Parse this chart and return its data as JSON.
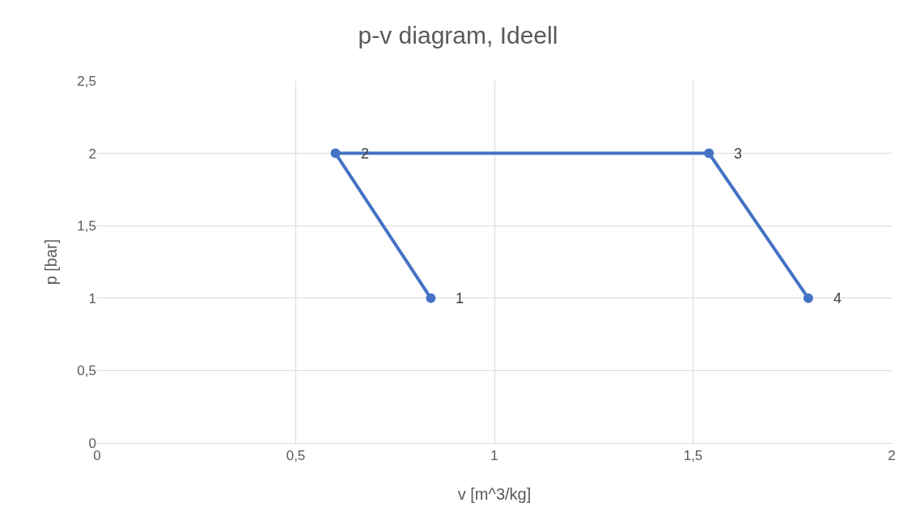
{
  "chart_data": {
    "type": "line",
    "title": "p-v diagram, Ideell",
    "xlabel": "v [m^3/kg]",
    "ylabel": "p [bar]",
    "x": [
      0.84,
      0.6,
      1.54,
      1.79
    ],
    "series": [
      {
        "color": "#4472c4",
        "values": [
          1,
          2,
          2,
          1
        ]
      }
    ],
    "xlim": [
      0,
      2
    ],
    "xticks": [
      0,
      {
        "value": 0.5,
        "label": "0,5"
      },
      1,
      {
        "value": 1.5,
        "label": "1,5"
      },
      2
    ],
    "ylim": [
      0,
      2.5
    ],
    "yticks": [
      0,
      {
        "value": 0.5,
        "label": "0,5"
      },
      1,
      {
        "value": 1.5,
        "label": "1,5"
      },
      2,
      {
        "value": 2.5,
        "label": "2,5"
      }
    ],
    "grid": true,
    "marker": "circle",
    "line_style": "solid",
    "annotations": [
      {
        "text": "1",
        "x": 0.84,
        "y": 1
      },
      {
        "text": "2",
        "x": 0.6,
        "y": 2
      },
      {
        "text": "3",
        "x": 1.54,
        "y": 2
      },
      {
        "text": "4",
        "x": 1.79,
        "y": 1
      }
    ]
  }
}
